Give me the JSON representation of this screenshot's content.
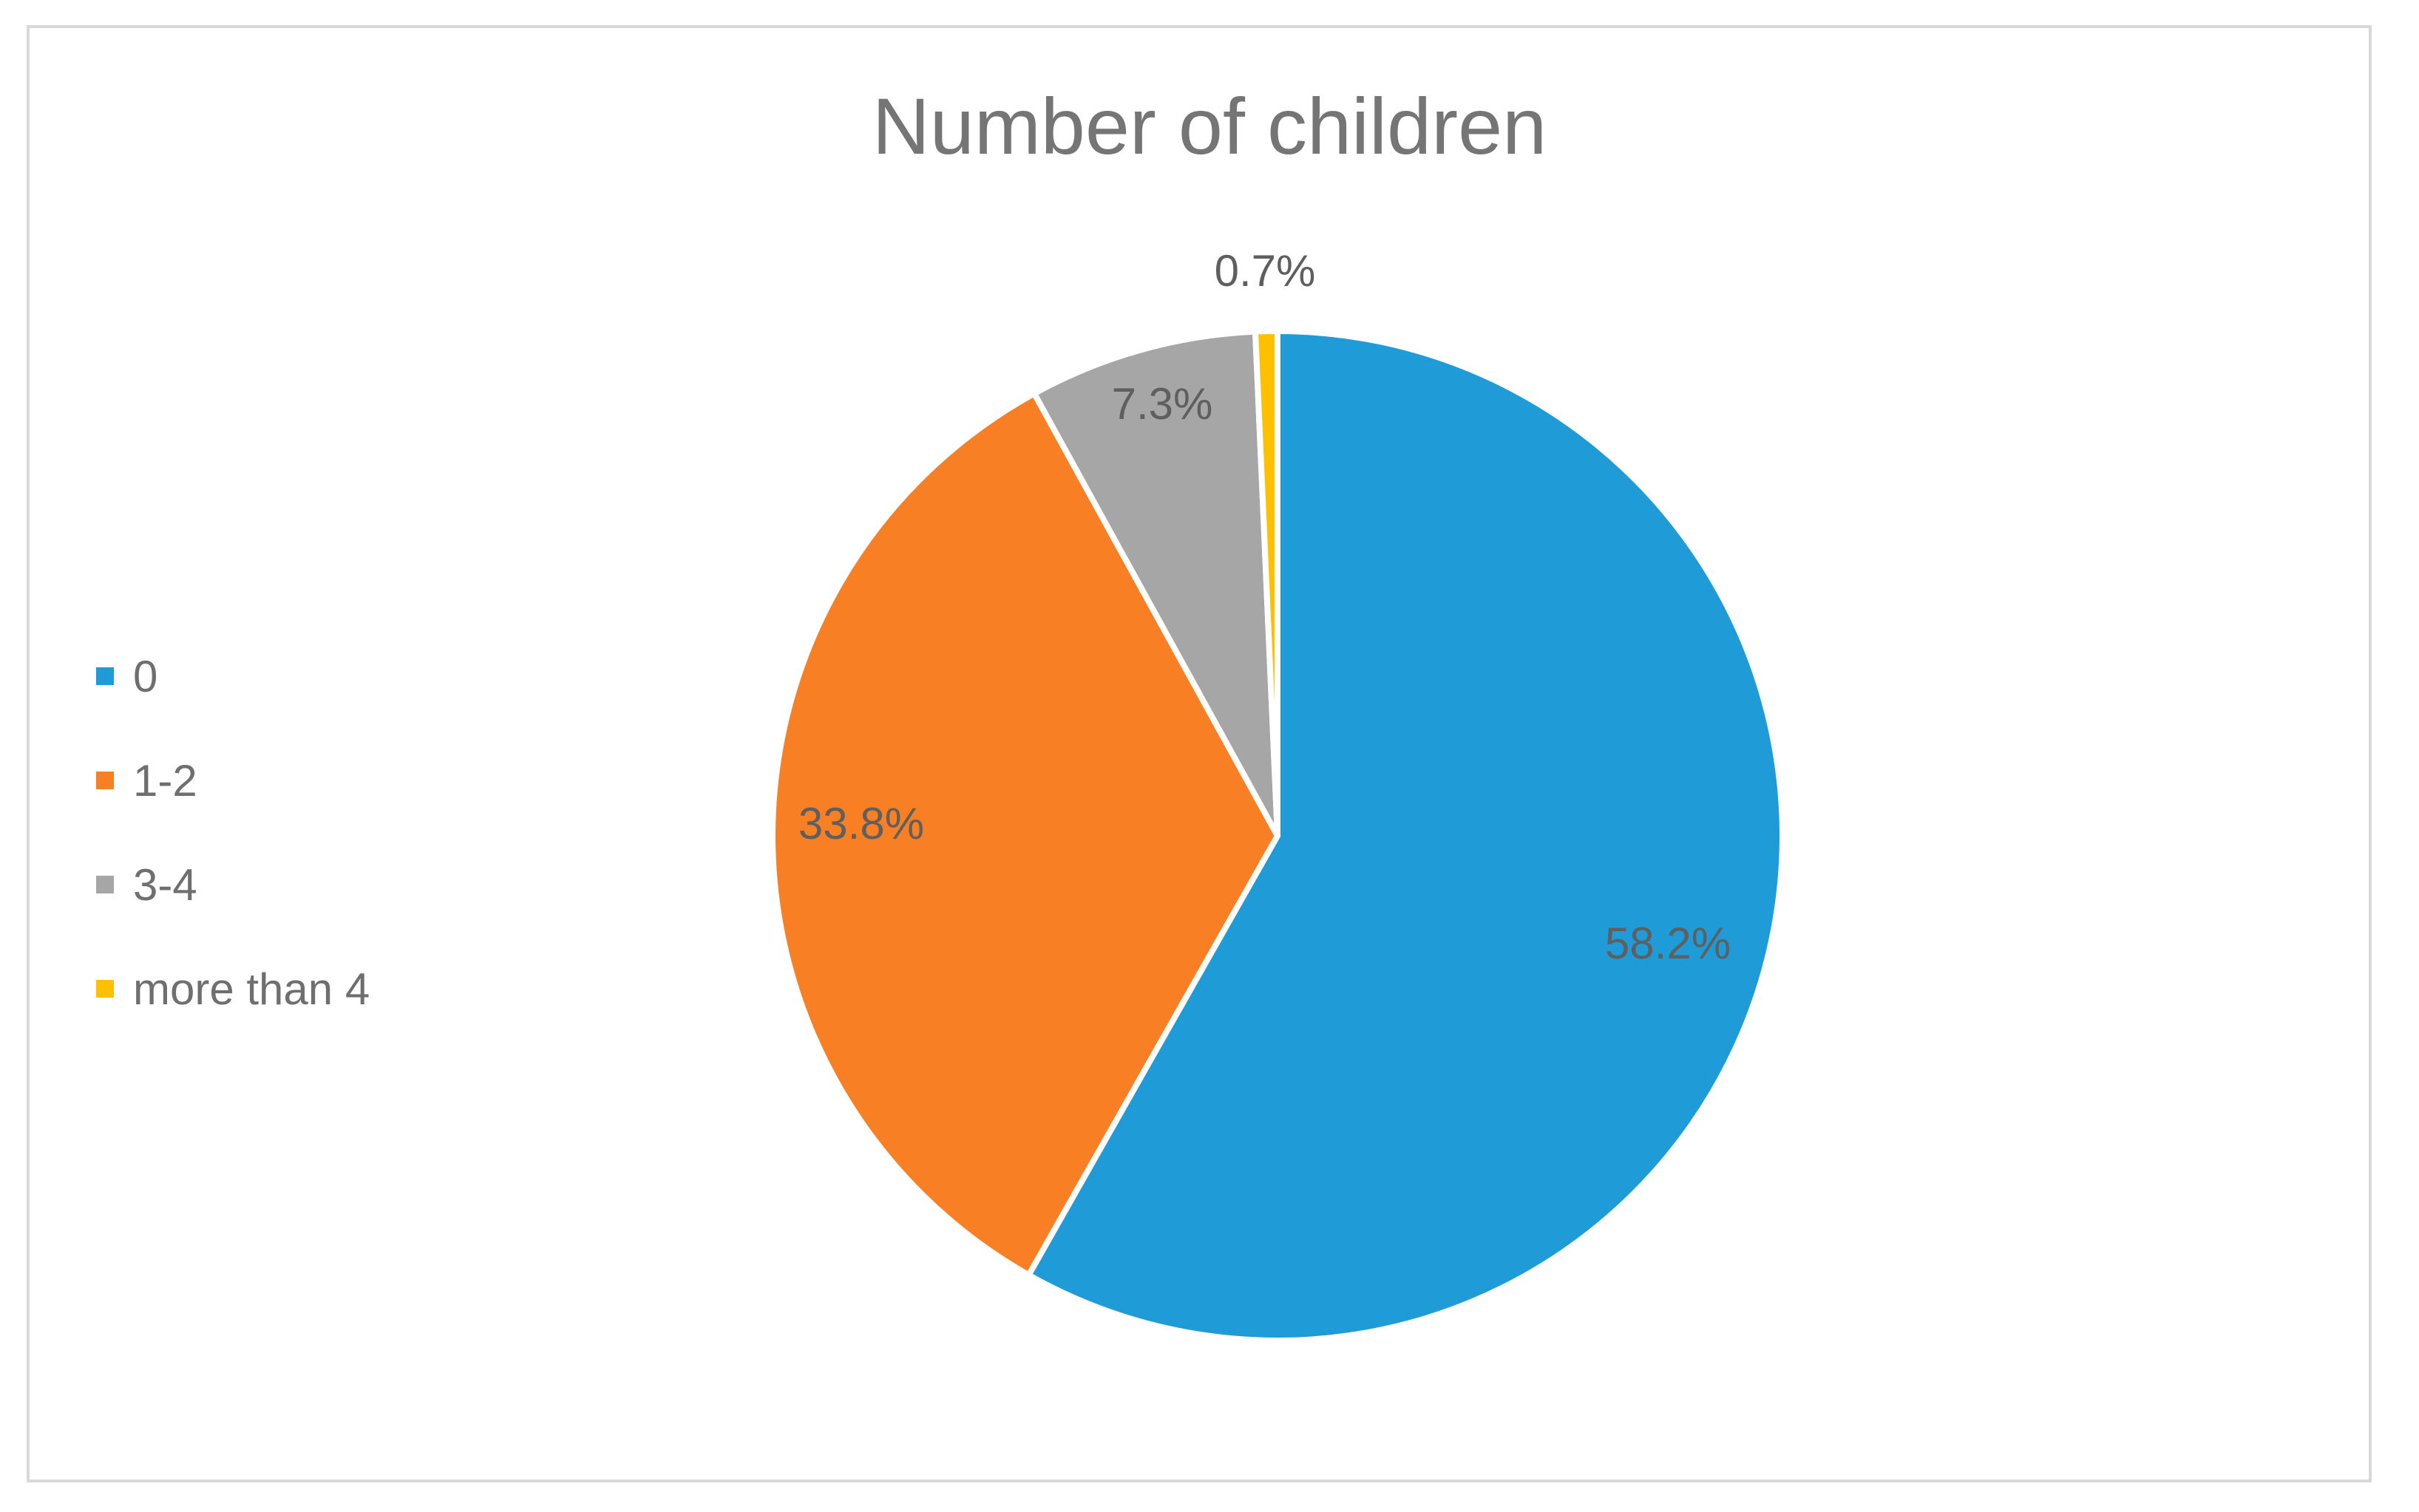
{
  "chart_data": {
    "type": "pie",
    "title": "Number of children",
    "categories": [
      "0",
      "1-2",
      "3-4",
      "more than 4"
    ],
    "values": [
      58.2,
      33.8,
      7.3,
      0.7
    ],
    "labels": [
      "58.2%",
      "33.8%",
      "7.3%",
      "0.7%"
    ],
    "colors": [
      "#1f9bd7",
      "#f97f25",
      "#a6a6a6",
      "#ffc000"
    ],
    "legend_position": "left",
    "start_angle": "12 o'clock",
    "direction": "clockwise"
  }
}
